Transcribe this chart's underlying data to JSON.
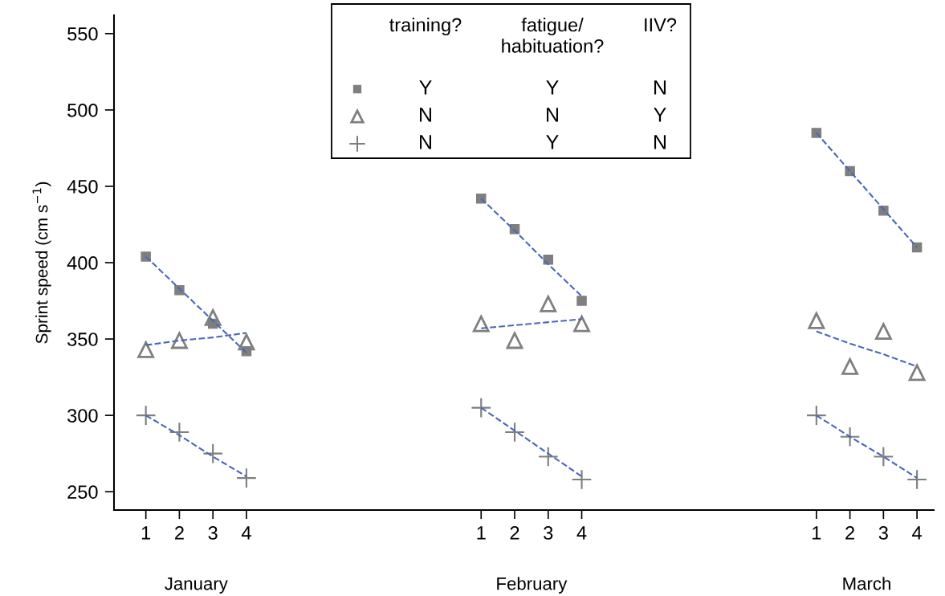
{
  "chart_data": {
    "type": "scatter",
    "ylabel": "Sprint speed (cm s$^{−1}$)",
    "categories": [
      "1",
      "2",
      "3",
      "4",
      null,
      null,
      null,
      null,
      null,
      null,
      "1",
      "2",
      "3",
      "4",
      null,
      null,
      null,
      null,
      null,
      null,
      "1",
      "2",
      "3",
      "4"
    ],
    "ylim": [
      238,
      562
    ],
    "yticks": [
      250,
      300,
      350,
      400,
      450,
      500,
      550
    ],
    "series": [
      {
        "marker": "square",
        "color": "#7f7f7f",
        "values": [
          404,
          382,
          360,
          342,
          null,
          null,
          null,
          null,
          null,
          null,
          442,
          422,
          402,
          375,
          null,
          null,
          null,
          null,
          null,
          null,
          485,
          460,
          434,
          410
        ]
      },
      {
        "marker": "triangle",
        "color": "#7f7f7f",
        "values": [
          343,
          349,
          364,
          348,
          null,
          null,
          null,
          null,
          null,
          null,
          360,
          349,
          373,
          360,
          null,
          null,
          null,
          null,
          null,
          null,
          362,
          332,
          355,
          328
        ]
      },
      {
        "marker": "cross",
        "color": "#7f7f7f",
        "values": [
          300,
          289,
          275,
          259,
          null,
          null,
          null,
          null,
          null,
          null,
          305,
          289,
          273,
          258,
          null,
          null,
          null,
          null,
          null,
          null,
          300,
          286,
          273,
          258
        ]
      },
      {
        "type": "line",
        "line_style": "dashed",
        "color": "#4a66b8",
        "values": [
          404,
          383,
          362,
          341,
          null,
          null,
          null,
          null,
          null,
          null,
          442,
          421,
          399,
          378,
          null,
          null,
          null,
          null,
          null,
          null,
          485,
          460,
          435,
          410
        ]
      },
      {
        "type": "line",
        "line_style": "dashed",
        "color": "#4a66b8",
        "values": [
          346,
          349,
          351,
          354,
          null,
          null,
          null,
          null,
          null,
          null,
          357,
          359,
          361,
          363,
          null,
          null,
          null,
          null,
          null,
          null,
          355,
          347,
          340,
          332
        ]
      },
      {
        "type": "line",
        "line_style": "dashed",
        "color": "#4a66b8",
        "values": [
          300,
          287,
          273,
          260,
          null,
          null,
          null,
          null,
          null,
          null,
          305,
          290,
          275,
          260,
          null,
          null,
          null,
          null,
          null,
          null,
          300,
          286,
          273,
          259
        ]
      }
    ],
    "annotations": [
      "training?",
      "fatigue/\nhabituation?",
      "IIV?",
      "Y",
      "Y",
      "N",
      "N",
      "N",
      "Y",
      "N",
      "Y",
      "N",
      "January",
      "February",
      "March"
    ]
  }
}
